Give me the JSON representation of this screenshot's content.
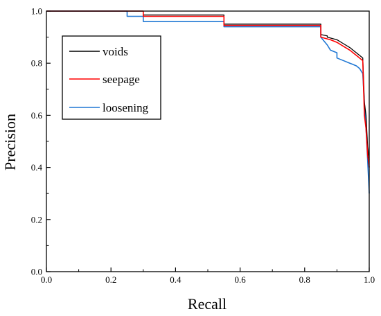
{
  "chart_data": {
    "type": "line",
    "title": "",
    "xlabel": "Recall",
    "ylabel": "Precision",
    "xlim": [
      0.0,
      1.0
    ],
    "ylim": [
      0.0,
      1.0
    ],
    "xticks": [
      "0.0",
      "0.2",
      "0.4",
      "0.6",
      "0.8",
      "1.0"
    ],
    "yticks": [
      "0.0",
      "0.2",
      "0.4",
      "0.6",
      "0.8",
      "1.0"
    ],
    "grid": false,
    "legend_position": "top-left",
    "series": [
      {
        "name": "voids",
        "color": "#000000",
        "x": [
          0.0,
          0.3,
          0.3,
          0.55,
          0.55,
          0.85,
          0.85,
          0.87,
          0.87,
          0.9,
          0.92,
          0.94,
          0.96,
          0.98,
          0.985,
          0.99,
          0.995,
          1.0
        ],
        "y": [
          1.0,
          1.0,
          0.985,
          0.985,
          0.95,
          0.95,
          0.91,
          0.905,
          0.9,
          0.89,
          0.875,
          0.86,
          0.84,
          0.82,
          0.65,
          0.6,
          0.48,
          0.43
        ]
      },
      {
        "name": "seepage",
        "color": "#ff0000",
        "x": [
          0.0,
          0.3,
          0.3,
          0.55,
          0.55,
          0.85,
          0.85,
          0.88,
          0.9,
          0.92,
          0.94,
          0.96,
          0.98,
          0.985,
          0.99,
          0.995,
          1.0
        ],
        "y": [
          1.0,
          1.0,
          0.98,
          0.98,
          0.945,
          0.945,
          0.9,
          0.89,
          0.88,
          0.865,
          0.85,
          0.83,
          0.81,
          0.6,
          0.55,
          0.45,
          0.4
        ]
      },
      {
        "name": "loosening",
        "color": "#1f77d4",
        "x": [
          0.0,
          0.25,
          0.25,
          0.3,
          0.3,
          0.55,
          0.55,
          0.85,
          0.85,
          0.87,
          0.88,
          0.9,
          0.9,
          0.92,
          0.94,
          0.96,
          0.97,
          0.98,
          0.985,
          0.99,
          0.995,
          1.0
        ],
        "y": [
          1.0,
          1.0,
          0.98,
          0.98,
          0.96,
          0.96,
          0.94,
          0.94,
          0.9,
          0.87,
          0.85,
          0.84,
          0.82,
          0.81,
          0.8,
          0.79,
          0.78,
          0.76,
          0.65,
          0.55,
          0.43,
          0.3
        ]
      }
    ]
  }
}
